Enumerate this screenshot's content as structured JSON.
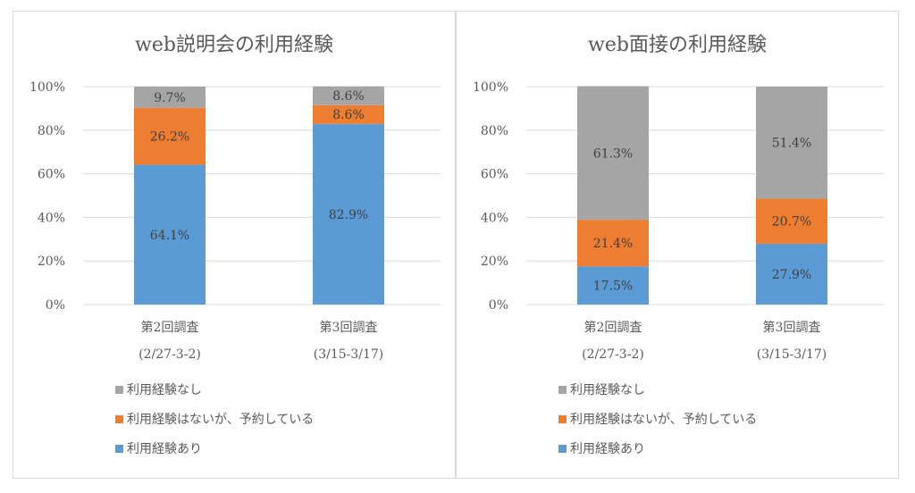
{
  "chart_data": [
    {
      "type": "bar",
      "stacked": true,
      "percent": true,
      "title": "web説明会の利用経験",
      "categories": [
        [
          "第2回調査",
          "(2/27-3-2)"
        ],
        [
          "第3回調査",
          "(3/15-3/17)"
        ]
      ],
      "series": [
        {
          "name": "利用経験あり",
          "values": [
            64.1,
            82.9
          ],
          "labels": [
            "64.1%",
            "82.9%"
          ],
          "color": "#5B9BD5"
        },
        {
          "name": "利用経験はないが、予約している",
          "values": [
            26.2,
            8.6
          ],
          "labels": [
            "26.2%",
            "8.6%"
          ],
          "color": "#ED7D31"
        },
        {
          "name": "利用経験なし",
          "values": [
            9.7,
            8.6
          ],
          "labels": [
            "9.7%",
            "8.6%"
          ],
          "color": "#A5A5A5"
        }
      ],
      "yticks": [
        "0%",
        "20%",
        "40%",
        "60%",
        "80%",
        "100%"
      ],
      "ylim": [
        0,
        100
      ],
      "grid": true,
      "legend": "bottom-left"
    },
    {
      "type": "bar",
      "stacked": true,
      "percent": true,
      "title": "web面接の利用経験",
      "categories": [
        [
          "第2回調査",
          "(2/27-3-2)"
        ],
        [
          "第3回調査",
          "(3/15-3/17)"
        ]
      ],
      "series": [
        {
          "name": "利用経験あり",
          "values": [
            17.5,
            27.9
          ],
          "labels": [
            "17.5%",
            "27.9%"
          ],
          "color": "#5B9BD5"
        },
        {
          "name": "利用経験はないが、予約している",
          "values": [
            21.4,
            20.7
          ],
          "labels": [
            "21.4%",
            "20.7%"
          ],
          "color": "#ED7D31"
        },
        {
          "name": "利用経験なし",
          "values": [
            61.3,
            51.4
          ],
          "labels": [
            "61.3%",
            "51.4%"
          ],
          "color": "#A5A5A5"
        }
      ],
      "yticks": [
        "0%",
        "20%",
        "40%",
        "60%",
        "80%",
        "100%"
      ],
      "ylim": [
        0,
        100
      ],
      "grid": true,
      "legend": "bottom-left"
    }
  ]
}
